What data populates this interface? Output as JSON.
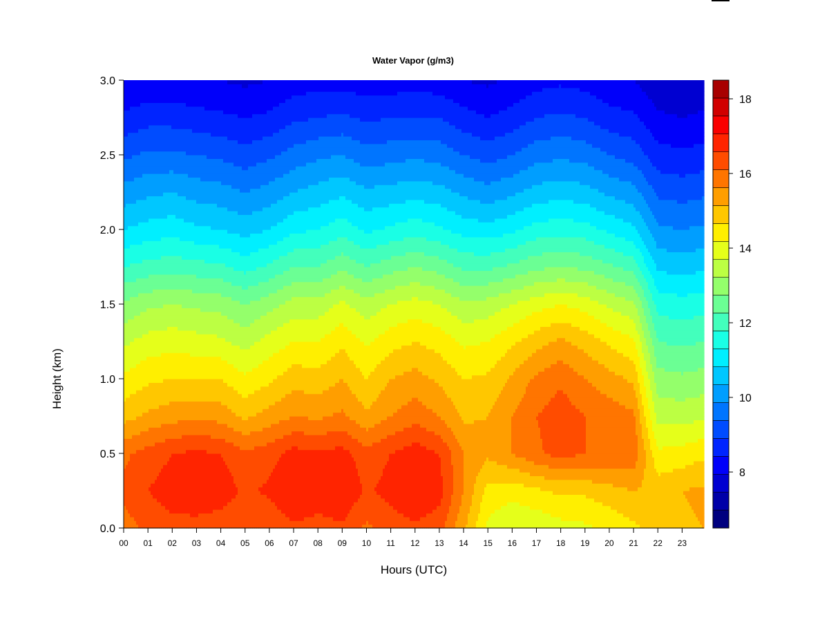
{
  "chart_data": {
    "type": "heatmap",
    "title": "Water Vapor (g/m3)",
    "xlabel": "Hours (UTC)",
    "ylabel": "Height (km)",
    "xlim": [
      0,
      23.9
    ],
    "ylim": [
      0,
      3.0
    ],
    "x_ticks": [
      "00",
      "01",
      "02",
      "03",
      "04",
      "05",
      "06",
      "07",
      "08",
      "09",
      "10",
      "11",
      "12",
      "13",
      "14",
      "15",
      "16",
      "17",
      "18",
      "19",
      "20",
      "21",
      "22",
      "23"
    ],
    "y_ticks": [
      "0.0",
      "0.5",
      "1.0",
      "1.5",
      "2.0",
      "2.5",
      "3.0"
    ],
    "colorbar": {
      "min": 6.5,
      "max": 18.5,
      "step": 0.5,
      "ticks": [
        "8",
        "10",
        "12",
        "14",
        "16",
        "18"
      ],
      "colors": [
        "#00007F",
        "#0000A8",
        "#0000D1",
        "#0000FA",
        "#0024FF",
        "#004CFF",
        "#0075FF",
        "#009EFF",
        "#00C7FF",
        "#00EFFF",
        "#1AFFE5",
        "#43FFBC",
        "#6BFF94",
        "#94FF6B",
        "#BCFF43",
        "#E5FF1A",
        "#FFEF00",
        "#FFC700",
        "#FF9E00",
        "#FF7500",
        "#FF4C00",
        "#FF2400",
        "#FA0000",
        "#D10000",
        "#A80000"
      ]
    },
    "profile_columns": [
      {
        "hour": 0.0,
        "values": [
          16.3,
          16.6,
          16.4,
          15.3,
          14.6,
          13.9,
          13.1,
          12.0,
          11.0,
          10.2,
          9.4,
          8.6,
          8.0
        ]
      },
      {
        "hour": 1.0,
        "values": [
          16.6,
          17.0,
          16.7,
          15.6,
          14.9,
          14.2,
          13.4,
          12.2,
          11.2,
          10.4,
          9.6,
          8.8,
          8.1
        ]
      },
      {
        "hour": 2.0,
        "values": [
          16.8,
          17.3,
          17.0,
          15.8,
          15.0,
          14.3,
          13.5,
          12.3,
          11.3,
          10.5,
          9.6,
          8.8,
          8.1
        ]
      },
      {
        "hour": 3.0,
        "values": [
          16.8,
          17.4,
          17.1,
          15.9,
          15.0,
          14.2,
          13.4,
          12.2,
          11.1,
          10.3,
          9.5,
          8.7,
          8.0
        ]
      },
      {
        "hour": 4.0,
        "values": [
          16.7,
          17.3,
          17.0,
          15.8,
          15.0,
          14.1,
          13.3,
          12.1,
          11.0,
          10.2,
          9.4,
          8.6,
          8.0
        ]
      },
      {
        "hour": 5.0,
        "values": [
          16.5,
          16.9,
          16.6,
          15.4,
          14.6,
          13.8,
          13.0,
          11.8,
          10.8,
          10.0,
          9.2,
          8.5,
          7.9
        ]
      },
      {
        "hour": 6.0,
        "values": [
          16.6,
          17.1,
          16.8,
          15.7,
          14.9,
          14.2,
          13.3,
          12.1,
          11.0,
          10.2,
          9.4,
          8.6,
          8.0
        ]
      },
      {
        "hour": 7.0,
        "values": [
          16.9,
          17.5,
          17.2,
          16.0,
          15.3,
          14.5,
          13.7,
          12.5,
          11.4,
          10.5,
          9.7,
          8.9,
          8.2
        ]
      },
      {
        "hour": 8.0,
        "values": [
          16.8,
          17.3,
          17.1,
          15.9,
          15.2,
          14.5,
          13.7,
          12.5,
          11.5,
          10.7,
          9.9,
          9.0,
          8.3
        ]
      },
      {
        "hour": 9.0,
        "values": [
          16.9,
          17.5,
          17.2,
          16.1,
          15.5,
          14.9,
          14.1,
          12.9,
          11.8,
          10.9,
          10.0,
          9.1,
          8.3
        ]
      },
      {
        "hour": 10.0,
        "values": [
          16.4,
          16.9,
          16.7,
          15.6,
          15.0,
          14.4,
          13.7,
          12.5,
          11.4,
          10.6,
          9.7,
          8.9,
          8.2
        ]
      },
      {
        "hour": 11.0,
        "values": [
          16.7,
          17.2,
          17.0,
          16.0,
          15.5,
          14.8,
          14.0,
          12.8,
          11.6,
          10.7,
          9.8,
          9.0,
          8.2
        ]
      },
      {
        "hour": 12.0,
        "values": [
          16.9,
          17.5,
          17.3,
          16.3,
          15.7,
          15.0,
          14.2,
          13.0,
          11.8,
          10.8,
          9.9,
          9.0,
          8.3
        ]
      },
      {
        "hour": 13.0,
        "values": [
          16.7,
          17.2,
          17.0,
          16.0,
          15.4,
          14.8,
          14.0,
          12.8,
          11.6,
          10.7,
          9.8,
          9.0,
          8.2
        ]
      },
      {
        "hour": 14.0,
        "values": [
          15.6,
          16.0,
          16.0,
          15.4,
          15.0,
          14.4,
          13.6,
          12.4,
          11.3,
          10.4,
          9.5,
          8.7,
          8.0
        ]
      },
      {
        "hour": 15.0,
        "values": [
          14.4,
          14.8,
          15.6,
          15.5,
          15.1,
          14.5,
          13.7,
          12.4,
          11.2,
          10.2,
          9.3,
          8.5,
          7.9
        ]
      },
      {
        "hour": 16.0,
        "values": [
          14.0,
          14.7,
          16.0,
          16.0,
          15.6,
          14.9,
          14.0,
          12.6,
          11.4,
          10.4,
          9.5,
          8.7,
          8.1
        ]
      },
      {
        "hour": 17.0,
        "values": [
          14.1,
          14.9,
          16.4,
          16.5,
          16.1,
          15.3,
          14.3,
          12.9,
          11.7,
          10.7,
          9.8,
          9.0,
          8.3
        ]
      },
      {
        "hour": 18.0,
        "values": [
          14.3,
          15.1,
          16.7,
          16.8,
          16.4,
          15.6,
          14.5,
          13.0,
          11.8,
          10.8,
          9.9,
          9.1,
          8.4
        ]
      },
      {
        "hour": 19.0,
        "values": [
          14.4,
          15.1,
          16.5,
          16.5,
          16.0,
          15.3,
          14.3,
          12.9,
          11.7,
          10.7,
          9.8,
          9.0,
          8.3
        ]
      },
      {
        "hour": 20.0,
        "values": [
          14.6,
          15.3,
          16.5,
          16.3,
          15.7,
          14.9,
          13.9,
          12.6,
          11.4,
          10.4,
          9.5,
          8.7,
          8.1
        ]
      },
      {
        "hour": 21.0,
        "values": [
          14.9,
          15.5,
          16.4,
          16.1,
          15.4,
          14.6,
          13.6,
          12.3,
          11.1,
          10.2,
          9.3,
          8.6,
          8.0
        ]
      },
      {
        "hour": 22.0,
        "values": [
          15.2,
          15.3,
          14.6,
          13.8,
          13.2,
          12.5,
          11.8,
          10.9,
          10.1,
          9.4,
          8.7,
          8.1,
          7.6
        ]
      },
      {
        "hour": 23.0,
        "values": [
          15.4,
          15.5,
          14.7,
          13.8,
          13.1,
          12.4,
          11.7,
          10.8,
          10.0,
          9.3,
          8.6,
          8.0,
          7.5
        ]
      },
      {
        "hour": 23.9,
        "values": [
          15.5,
          15.6,
          14.9,
          13.9,
          13.2,
          12.5,
          11.8,
          10.9,
          10.1,
          9.4,
          8.7,
          8.1,
          7.6
        ]
      }
    ],
    "profile_heights": [
      0.0,
      0.25,
      0.5,
      0.75,
      1.0,
      1.25,
      1.5,
      1.75,
      2.0,
      2.25,
      2.5,
      2.75,
      3.0
    ],
    "grid": false,
    "legend": "colorbar-right"
  }
}
